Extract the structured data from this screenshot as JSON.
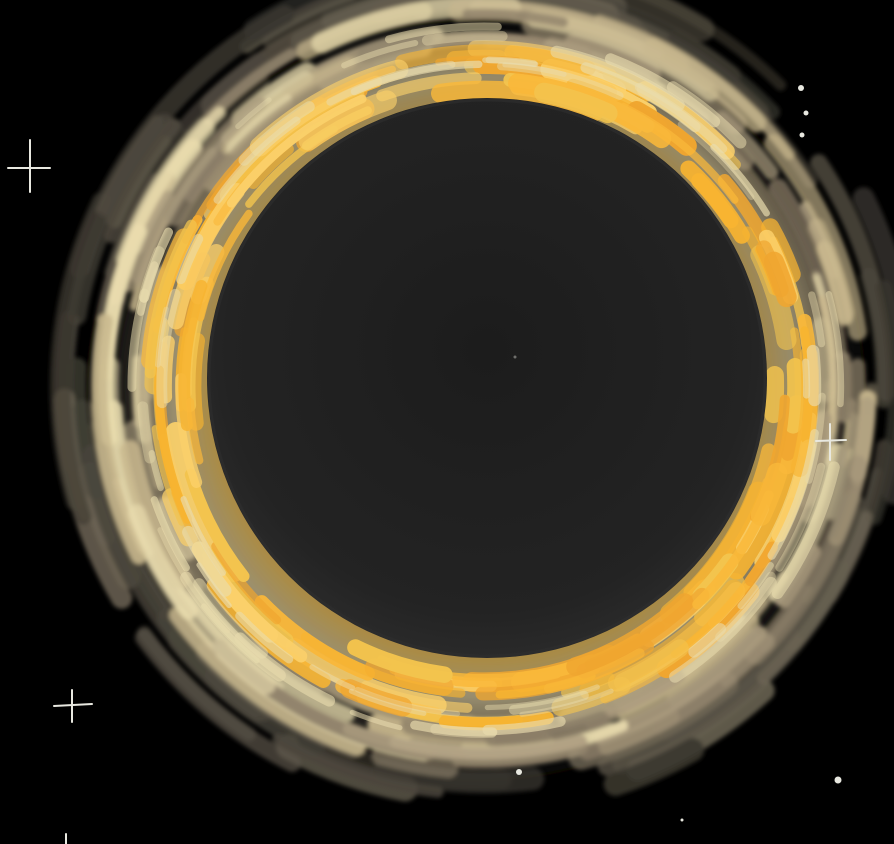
{
  "artwork": {
    "subject": "solar-eclipse-painting",
    "colors": {
      "space": "#000000",
      "moon": "#222222",
      "moon_inner": "#1b1b1b",
      "corona_inner": "#f7b431",
      "corona_mid": "#f3c44e",
      "corona_pale": "#e9dcae",
      "corona_outer": "#a99a7d",
      "haze": "#5b5548",
      "star": "#e8e8e0"
    },
    "icons": {
      "cross_star": "sparkle-cross-icon",
      "dot_star": "star-dot-icon"
    }
  }
}
